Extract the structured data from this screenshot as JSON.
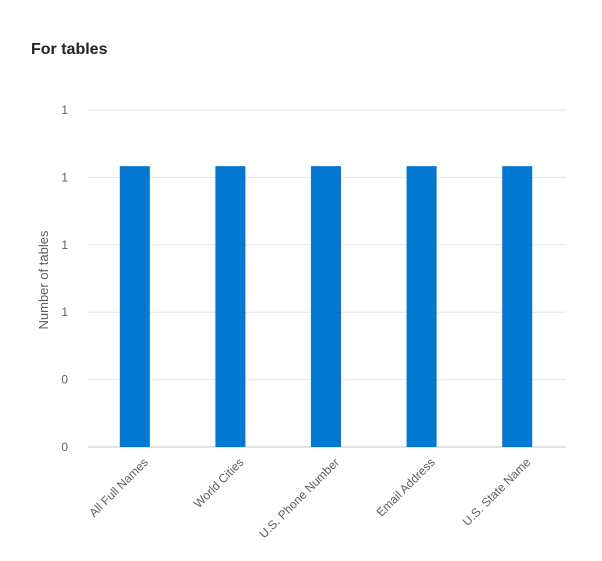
{
  "title": "For tables",
  "chart_data": {
    "type": "bar",
    "title": "For tables",
    "xlabel": "",
    "ylabel": "Number of tables",
    "categories": [
      "All Full Names",
      "World Cities",
      "U.S. Phone Number",
      "Email Address",
      "U.S. State Name"
    ],
    "values": [
      1,
      1,
      1,
      1,
      1
    ],
    "y_tick_labels": [
      "0",
      "0",
      "1",
      "1",
      "1",
      "1"
    ],
    "ylim": [
      0,
      1.2
    ],
    "grid": true,
    "bar_color": "#0078d4"
  }
}
